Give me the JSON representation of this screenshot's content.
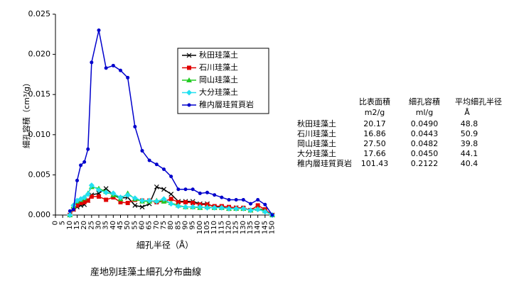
{
  "chart_data": {
    "type": "line",
    "caption": "産地別珪藻土細孔分布曲線",
    "x_label": "細孔半径（Å）",
    "y_label": "細孔容積（cm³/g）",
    "x": [
      10,
      12.5,
      15,
      17.5,
      20,
      22.5,
      25,
      30,
      35,
      40,
      45,
      50,
      55,
      60,
      65,
      70,
      75,
      80,
      85,
      90,
      95,
      100,
      105,
      110,
      115,
      120,
      125,
      130,
      135,
      140,
      145,
      150
    ],
    "series": [
      {
        "name": "秋田珪藻土",
        "color": "#000000",
        "marker": "x",
        "values": [
          0,
          0.0007,
          0.001,
          0.0012,
          0.0013,
          0.0018,
          0.0025,
          0.0027,
          0.0033,
          0.0025,
          0.0021,
          0.0022,
          0.0012,
          0.001,
          0.0014,
          0.0035,
          0.0032,
          0.0026,
          0.0017,
          0.0017,
          0.0017,
          0.0014,
          0.0014,
          0.001,
          0.001,
          0.0008,
          0.0009,
          0.0008,
          0.0006,
          0.0008,
          0.0006,
          0
        ]
      },
      {
        "name": "石川珪藻土",
        "color": "#e00000",
        "marker": "square",
        "values": [
          0,
          0.0007,
          0.0012,
          0.0015,
          0.0016,
          0.0018,
          0.0023,
          0.0023,
          0.0019,
          0.0022,
          0.0016,
          0.0015,
          0.0019,
          0.0018,
          0.0018,
          0.0016,
          0.0017,
          0.002,
          0.0016,
          0.0016,
          0.0015,
          0.0013,
          0.0013,
          0.0011,
          0.0011,
          0.001,
          0.0009,
          0.0009,
          0.0006,
          0.0012,
          0.0007,
          0
        ]
      },
      {
        "name": "岡山珪藻土",
        "color": "#22cc22",
        "marker": "triangle",
        "values": [
          0,
          0.0011,
          0.0017,
          0.0019,
          0.0021,
          0.0027,
          0.0035,
          0.0033,
          0.0029,
          0.0025,
          0.002,
          0.0027,
          0.002,
          0.0017,
          0.0017,
          0.0018,
          0.0017,
          0.0015,
          0.0012,
          0.001,
          0.001,
          0.0009,
          0.001,
          0.0009,
          0.0009,
          0.0008,
          0.0008,
          0.0008,
          0.0006,
          0.0008,
          0.0005,
          0
        ]
      },
      {
        "name": "大分珪藻土",
        "color": "#22e0f0",
        "marker": "diamond",
        "values": [
          0,
          0.0012,
          0.0018,
          0.002,
          0.0022,
          0.0026,
          0.0037,
          0.0031,
          0.0028,
          0.0027,
          0.0022,
          0.0025,
          0.0021,
          0.0018,
          0.0018,
          0.0017,
          0.002,
          0.0014,
          0.0011,
          0.001,
          0.001,
          0.001,
          0.0009,
          0.0009,
          0.0009,
          0.0008,
          0.0008,
          0.0008,
          0.0006,
          0.0007,
          0.0004,
          0
        ]
      },
      {
        "name": "稚内層珪質頁岩",
        "color": "#0000cc",
        "marker": "circle",
        "values": [
          0.0005,
          0.0007,
          0.0043,
          0.0062,
          0.0066,
          0.0082,
          0.019,
          0.023,
          0.0183,
          0.0186,
          0.018,
          0.0171,
          0.011,
          0.008,
          0.0068,
          0.0063,
          0.0057,
          0.0048,
          0.0032,
          0.0032,
          0.0032,
          0.0027,
          0.0028,
          0.0025,
          0.0022,
          0.0019,
          0.0019,
          0.0019,
          0.0014,
          0.0019,
          0.0013,
          0
        ]
      }
    ],
    "xlim": [
      0,
      150
    ],
    "xticks": [
      0,
      5,
      10,
      15,
      20,
      25,
      30,
      35,
      40,
      45,
      50,
      55,
      60,
      65,
      70,
      75,
      80,
      85,
      90,
      95,
      100,
      105,
      110,
      115,
      120,
      125,
      130,
      135,
      140,
      145,
      150
    ],
    "ylim": [
      0,
      0.025
    ],
    "yticks": [
      {
        "value": 0,
        "label": "0.000"
      },
      0.005,
      {
        "value": 0.01,
        "label": "0.010"
      },
      0.015,
      {
        "value": 0.02,
        "label": "0.020"
      },
      0.025
    ],
    "legend": "upper right"
  },
  "table": {
    "headers": [
      "比表面積",
      "細孔容積",
      "平均細孔半径"
    ],
    "units": [
      "m2/g",
      "ml/g",
      "Å"
    ],
    "rows": [
      [
        "秋田珪藻土",
        "20.17",
        "0.0490",
        "48.8"
      ],
      [
        "石川珪藻土",
        "16.86",
        "0.0443",
        "50.9"
      ],
      [
        "岡山珪藻土",
        "27.50",
        "0.0482",
        "39.8"
      ],
      [
        "大分珪藻土",
        "17.66",
        "0.0450",
        "44.1"
      ],
      [
        "稚内層珪質頁岩",
        "101.43",
        "0.2122",
        "40.4"
      ]
    ]
  }
}
